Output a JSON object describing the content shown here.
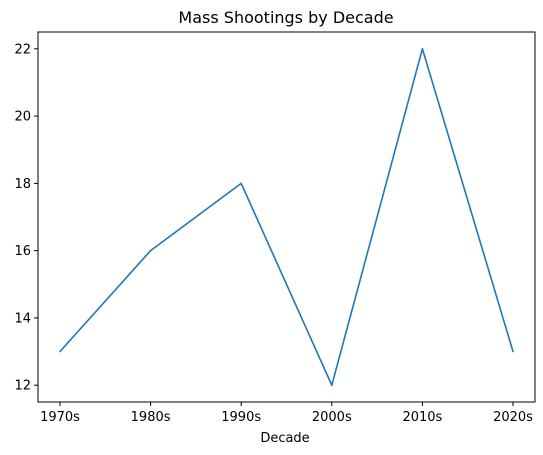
{
  "chart_data": {
    "type": "line",
    "title": "Mass Shootings by Decade",
    "xlabel": "Decade",
    "ylabel": "",
    "categories": [
      "1970s",
      "1980s",
      "1990s",
      "2000s",
      "2010s",
      "2020s"
    ],
    "values": [
      13,
      16,
      18,
      12,
      22,
      13
    ],
    "ylim": [
      11.5,
      22.5
    ],
    "yticks": [
      "12",
      "14",
      "16",
      "18",
      "20",
      "22"
    ],
    "grid": false,
    "legend": "none",
    "line_color": "#1f77b4"
  }
}
